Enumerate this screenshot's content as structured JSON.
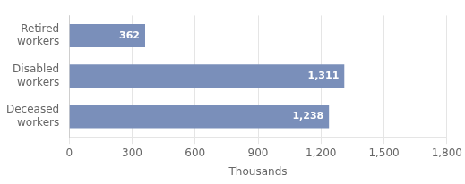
{
  "chart_data": {
    "type": "bar",
    "orientation": "horizontal",
    "categories": [
      "Deceased\nworkers",
      "Disabled\nworkers",
      "Retired\nworkers"
    ],
    "values": [
      1238,
      1311,
      362
    ],
    "value_labels": [
      "1,238",
      "1,311",
      "362"
    ],
    "data_labels": true,
    "color": "#7a8fba",
    "xlabel": "Thousands",
    "xlim": [
      0,
      1800
    ],
    "xticks": [
      0,
      300,
      600,
      900,
      {
        "value": 1200,
        "label": "1,200"
      },
      {
        "value": 1500,
        "label": "1,500"
      },
      {
        "value": 1800,
        "label": "1,800"
      }
    ],
    "grid": true
  }
}
